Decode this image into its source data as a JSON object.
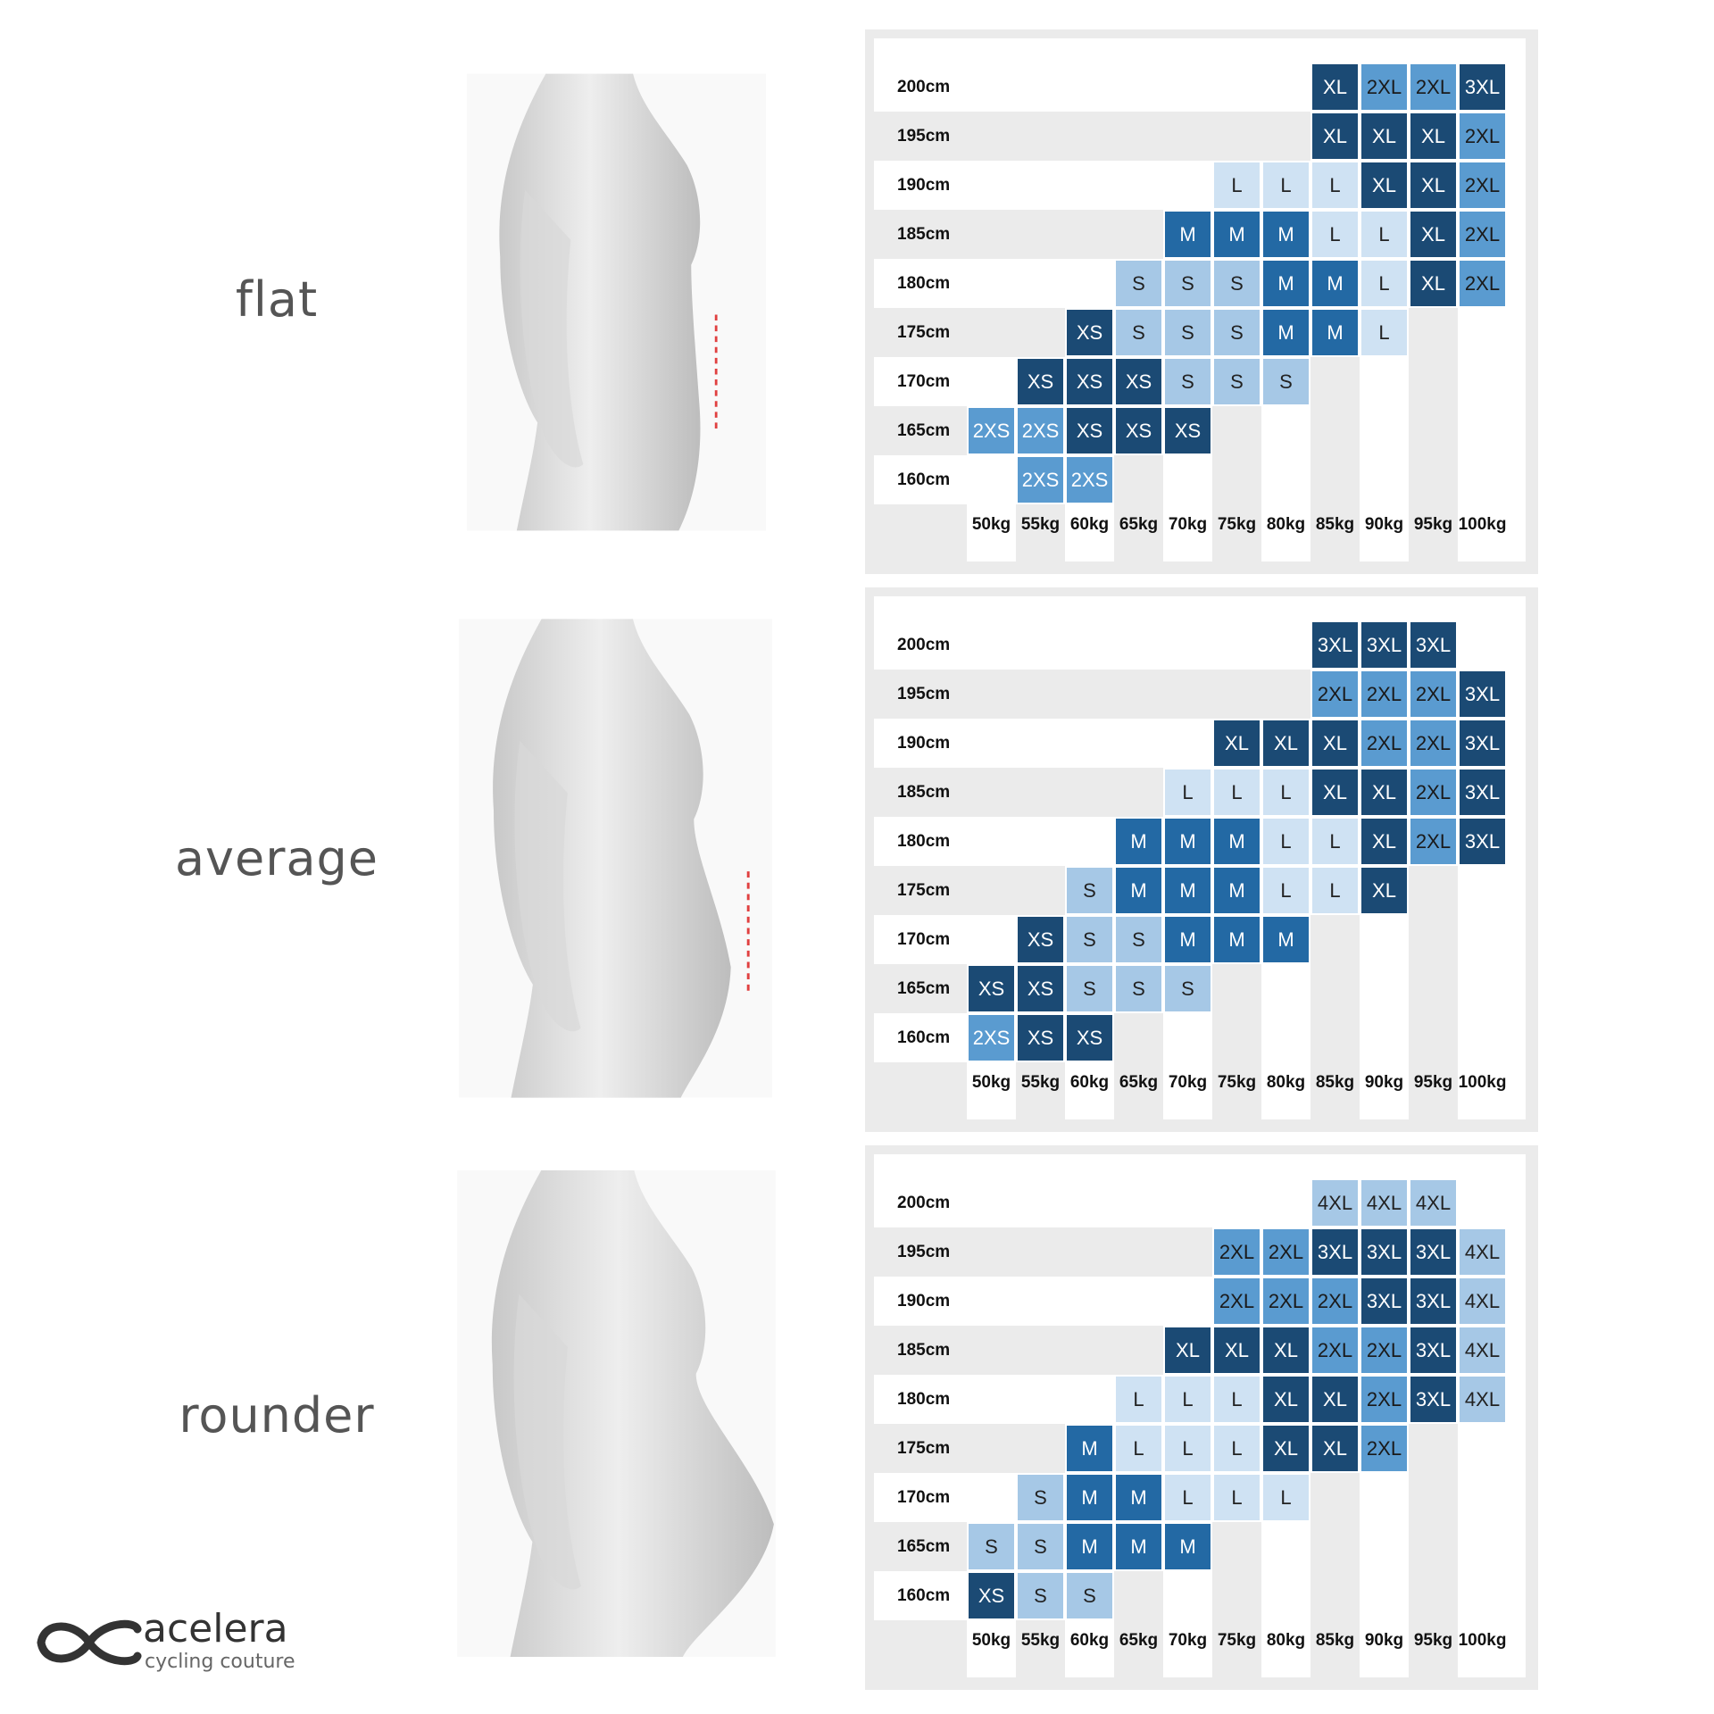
{
  "weights": [
    "50kg",
    "55kg",
    "60kg",
    "65kg",
    "70kg",
    "75kg",
    "80kg",
    "85kg",
    "90kg",
    "95kg",
    "100kg"
  ],
  "heights": [
    "200cm",
    "195cm",
    "190cm",
    "185cm",
    "180cm",
    "175cm",
    "170cm",
    "165cm",
    "160cm"
  ],
  "size_colors": {
    "2XS": {
      "bg": "#5a9bd0",
      "fg": "#ffffff"
    },
    "XS": {
      "bg": "#1b4a74",
      "fg": "#ffffff"
    },
    "S": {
      "bg": "#a6c8e6",
      "fg": "#222222"
    },
    "M": {
      "bg": "#2369a4",
      "fg": "#ffffff"
    },
    "L": {
      "bg": "#cfe2f3",
      "fg": "#222222"
    },
    "XL": {
      "bg": "#1b4a74",
      "fg": "#ffffff"
    },
    "2XL": {
      "bg": "#5a9bd0",
      "fg": "#1a1a1a"
    },
    "3XL": {
      "bg": "#1b4a74",
      "fg": "#ffffff"
    },
    "4XL": {
      "bg": "#a6c8e6",
      "fg": "#222222"
    }
  },
  "stripe_color": "#ebebeb",
  "guide_line_color": "#e04040",
  "body_types": [
    {
      "label": "flat",
      "rows": [
        [
          "",
          "",
          "",
          "",
          "",
          "",
          "",
          "XL",
          "2XL",
          "2XL",
          "3XL"
        ],
        [
          "",
          "",
          "",
          "",
          "",
          "",
          "",
          "XL",
          "XL",
          "XL",
          "2XL"
        ],
        [
          "",
          "",
          "",
          "",
          "",
          "L",
          "L",
          "L",
          "XL",
          "XL",
          "2XL"
        ],
        [
          "",
          "",
          "",
          "",
          "M",
          "M",
          "M",
          "L",
          "L",
          "XL",
          "2XL"
        ],
        [
          "",
          "",
          "",
          "S",
          "S",
          "S",
          "M",
          "M",
          "L",
          "XL",
          "2XL"
        ],
        [
          "",
          "",
          "XS",
          "S",
          "S",
          "S",
          "M",
          "M",
          "L",
          "",
          ""
        ],
        [
          "",
          "XS",
          "XS",
          "XS",
          "S",
          "S",
          "S",
          "",
          "",
          "",
          ""
        ],
        [
          "2XS",
          "2XS",
          "XS",
          "XS",
          "XS",
          "",
          "",
          "",
          "",
          "",
          ""
        ],
        [
          "",
          "2XS",
          "2XS",
          "",
          "",
          "",
          "",
          "",
          "",
          "",
          ""
        ]
      ]
    },
    {
      "label": "average",
      "rows": [
        [
          "",
          "",
          "",
          "",
          "",
          "",
          "",
          "3XL",
          "3XL",
          "3XL",
          ""
        ],
        [
          "",
          "",
          "",
          "",
          "",
          "",
          "",
          "2XL",
          "2XL",
          "2XL",
          "3XL"
        ],
        [
          "",
          "",
          "",
          "",
          "",
          "XL",
          "XL",
          "XL",
          "2XL",
          "2XL",
          "3XL"
        ],
        [
          "",
          "",
          "",
          "",
          "L",
          "L",
          "L",
          "XL",
          "XL",
          "2XL",
          "3XL"
        ],
        [
          "",
          "",
          "",
          "M",
          "M",
          "M",
          "L",
          "L",
          "XL",
          "2XL",
          "3XL"
        ],
        [
          "",
          "",
          "S",
          "M",
          "M",
          "M",
          "L",
          "L",
          "XL",
          "",
          ""
        ],
        [
          "",
          "XS",
          "S",
          "S",
          "M",
          "M",
          "M",
          "",
          "",
          "",
          ""
        ],
        [
          "XS",
          "XS",
          "S",
          "S",
          "S",
          "",
          "",
          "",
          "",
          "",
          ""
        ],
        [
          "2XS",
          "XS",
          "XS",
          "",
          "",
          "",
          "",
          "",
          "",
          "",
          ""
        ]
      ]
    },
    {
      "label": "rounder",
      "rows": [
        [
          "",
          "",
          "",
          "",
          "",
          "",
          "",
          "4XL",
          "4XL",
          "4XL",
          ""
        ],
        [
          "",
          "",
          "",
          "",
          "",
          "2XL",
          "2XL",
          "3XL",
          "3XL",
          "3XL",
          "4XL"
        ],
        [
          "",
          "",
          "",
          "",
          "",
          "2XL",
          "2XL",
          "2XL",
          "3XL",
          "3XL",
          "4XL"
        ],
        [
          "",
          "",
          "",
          "",
          "XL",
          "XL",
          "XL",
          "2XL",
          "2XL",
          "3XL",
          "4XL"
        ],
        [
          "",
          "",
          "",
          "L",
          "L",
          "L",
          "XL",
          "XL",
          "2XL",
          "3XL",
          "4XL"
        ],
        [
          "",
          "",
          "M",
          "L",
          "L",
          "L",
          "XL",
          "XL",
          "2XL",
          "",
          ""
        ],
        [
          "",
          "S",
          "M",
          "M",
          "L",
          "L",
          "L",
          "",
          "",
          "",
          ""
        ],
        [
          "S",
          "S",
          "M",
          "M",
          "M",
          "",
          "",
          "",
          "",
          "",
          ""
        ],
        [
          "XS",
          "S",
          "S",
          "",
          "",
          "",
          "",
          "",
          "",
          "",
          ""
        ]
      ]
    }
  ],
  "logo": {
    "name": "acelera",
    "tagline": "cycling couture"
  }
}
